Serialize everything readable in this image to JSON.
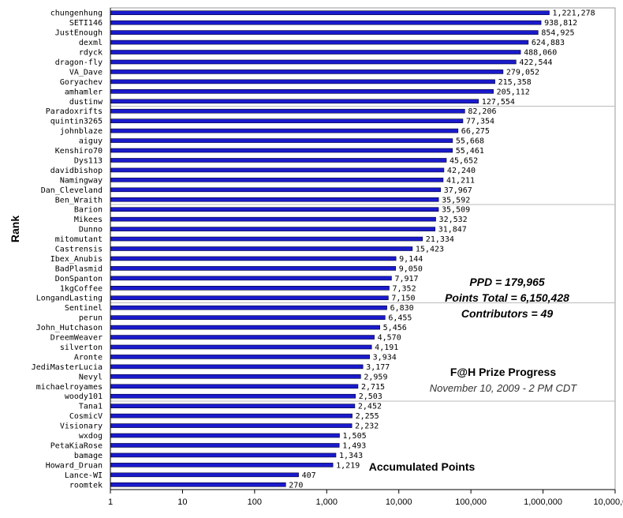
{
  "chart_data": {
    "type": "bar",
    "orientation": "horizontal",
    "scale": "log",
    "xlabel": "Accumulated Points",
    "ylabel": "Rank",
    "xlim": [
      1,
      10000000
    ],
    "x_ticks": [
      "1",
      "10",
      "100",
      "1,000",
      "10,000",
      "100,000",
      "1,000,000",
      "10,000,000"
    ],
    "grid": "horizontal every 10 rows",
    "bar_color": "#1a1acc",
    "categories": [
      "chungenhung",
      "SETI146",
      "JustEnough",
      "dexml",
      "rdyck",
      "dragon-fly",
      "VA_Dave",
      "Goryachev",
      "amhamler",
      "dustinw",
      "Paradoxrifts",
      "quintin3265",
      "johnblaze",
      "aiguy",
      "Kenshiro70",
      "Dys113",
      "davidbishop",
      "Namingway",
      "Dan_Cleveland",
      "Ben_Wraith",
      "Barion",
      "Mikees",
      "Dunno",
      "mitomutant",
      "Castrensis",
      "Ibex_Anubis",
      "BadPlasmid",
      "DonSpanton",
      "1kgCoffee",
      "LongandLasting",
      "Sentinel",
      "perun",
      "John_Hutchason",
      "DreemWeaver",
      "silverton",
      "Aronte",
      "JediMasterLucia",
      "Nevyl",
      "michaelroyames",
      "woody101",
      "Tana1",
      "CosmicV",
      "Visionary",
      "wxdog",
      "PetaKiaRose",
      "bamage",
      "Howard_Druan",
      "Lance-WI",
      "roomtek"
    ],
    "values": [
      1221278,
      938812,
      854925,
      624883,
      488060,
      422544,
      279052,
      215358,
      205112,
      127554,
      82206,
      77354,
      66275,
      55668,
      55461,
      45652,
      42240,
      41211,
      37967,
      35592,
      35509,
      32532,
      31847,
      21334,
      15423,
      9144,
      9050,
      7917,
      7352,
      7150,
      6830,
      6455,
      5456,
      4570,
      4191,
      3934,
      3177,
      2959,
      2715,
      2503,
      2452,
      2255,
      2232,
      1505,
      1493,
      1343,
      1219,
      407,
      270
    ],
    "value_labels": [
      "1,221,278",
      "938,812",
      "854,925",
      "624,883",
      "488,060",
      "422,544",
      "279,052",
      "215,358",
      "205,112",
      "127,554",
      "82,206",
      "77,354",
      "66,275",
      "55,668",
      "55,461",
      "45,652",
      "42,240",
      "41,211",
      "37,967",
      "35,592",
      "35,509",
      "32,532",
      "31,847",
      "21,334",
      "15,423",
      "9,144",
      "9,050",
      "7,917",
      "7,352",
      "7,150",
      "6,830",
      "6,455",
      "5,456",
      "4,570",
      "4,191",
      "3,934",
      "3,177",
      "2,959",
      "2,715",
      "2,503",
      "2,452",
      "2,255",
      "2,232",
      "1,505",
      "1,493",
      "1,343",
      "1,219",
      "407",
      "270"
    ]
  },
  "annotations": {
    "ppd": "PPD = 179,965",
    "points_total": "Points Total = 6,150,428",
    "contributors": "Contributors = 49",
    "title": "F@H Prize Progress",
    "subtitle": "November 10, 2009 - 2 PM CDT"
  }
}
